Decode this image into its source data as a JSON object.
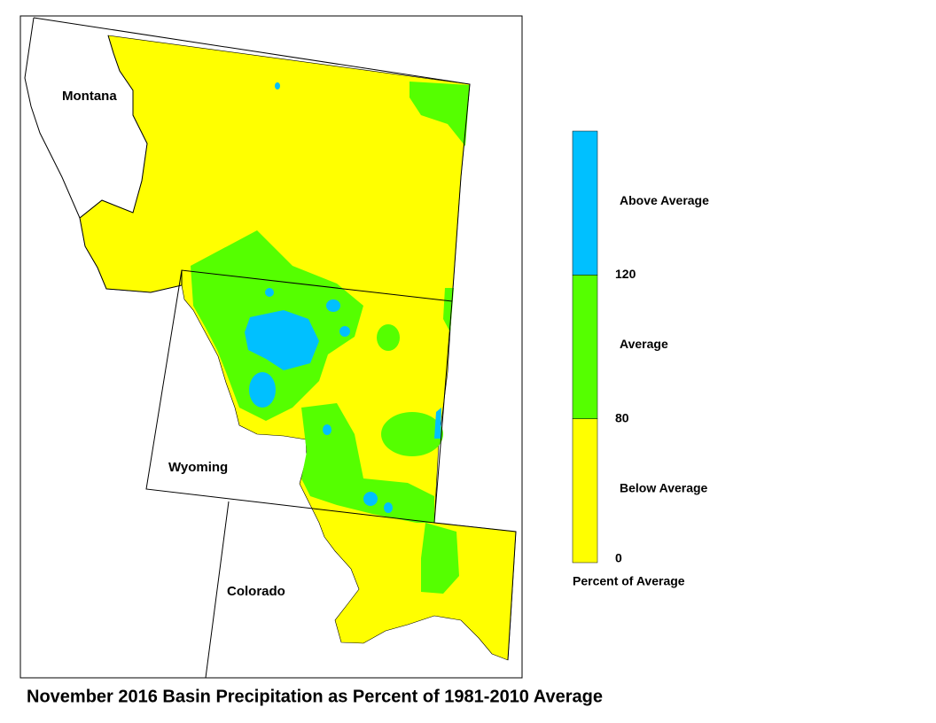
{
  "title": "November 2016 Basin Precipitation as Percent of 1981-2010 Average",
  "states": [
    {
      "label": "Montana"
    },
    {
      "label": "Wyoming"
    },
    {
      "label": "Colorado"
    }
  ],
  "legend": {
    "title": "Percent of Average",
    "ticks": [
      0,
      80,
      120
    ],
    "classes": [
      {
        "label": "Below Average",
        "color": "#ffff00"
      },
      {
        "label": "Average",
        "color": "#55ff00"
      },
      {
        "label": "Above Average",
        "color": "#00c0ff"
      }
    ]
  }
}
